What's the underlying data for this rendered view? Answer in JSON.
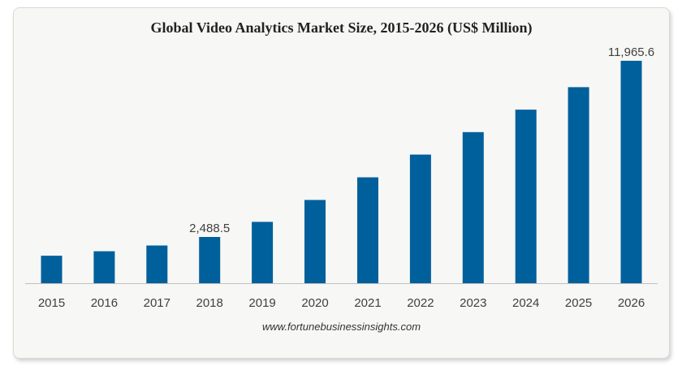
{
  "chart_data": {
    "type": "bar",
    "title": "Global Video Analytics Market Size, 2015-2026 (US$ Million)",
    "categories": [
      "2015",
      "2016",
      "2017",
      "2018",
      "2019",
      "2020",
      "2021",
      "2022",
      "2023",
      "2024",
      "2025",
      "2026"
    ],
    "values": [
      1480,
      1720,
      2030,
      2488.5,
      3300,
      4480,
      5700,
      6920,
      8130,
      9340,
      10550,
      11965.6
    ],
    "labeled_points": [
      {
        "category": "2018",
        "label": "2,488.5"
      },
      {
        "category": "2026",
        "label": "11,965.6"
      }
    ],
    "xlabel": "",
    "ylabel": "",
    "ylim": [
      0,
      12400
    ],
    "grid": false,
    "legend": "none",
    "bar_color": "#00609c"
  },
  "source": "www.fortunebusinessinsights.com",
  "colors": {
    "bar": "#00609c",
    "axis": "#bfbfbf",
    "text": "#404040"
  }
}
